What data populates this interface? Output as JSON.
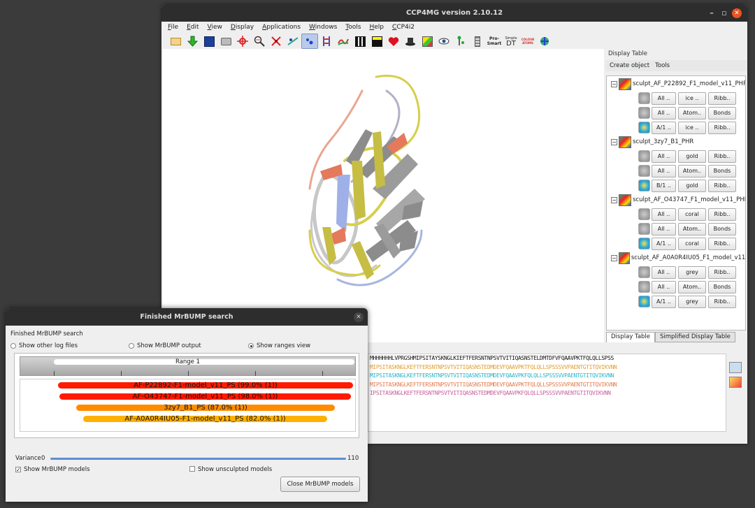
{
  "main_window": {
    "title": "CCP4MG version 2.10.12",
    "menus": [
      "File",
      "Edit",
      "View",
      "Display",
      "Applications",
      "Windows",
      "Tools",
      "Help",
      "CCP4i2"
    ],
    "toolbar_icons": [
      "open-folder-icon",
      "download-arrow-icon",
      "save-disk-icon",
      "camera-icon",
      "center-crosshair-icon",
      "zoom-icon",
      "clash-icon",
      "tracking-icon",
      "ribbon-icon",
      "color-icon",
      "movie-icon",
      "clapper-icon",
      "heart-icon",
      "hat-icon",
      "picture-icon",
      "eye-icon",
      "sequence-icon",
      "battery-icon",
      "pro-smart-icon",
      "dt-icon",
      "color-atoms-icon",
      "globe-icon"
    ],
    "toolbar_text": {
      "prosmart": "Pro-Smart",
      "simple": "Simple",
      "dt": "DT",
      "colour": "COLOUR ATOMS"
    }
  },
  "display_table": {
    "header": "Display Table",
    "menu_create": "Create object",
    "menu_tools": "Tools",
    "objects": [
      {
        "name": "sculpt_AF_P22892_F1_model_v11_PHR",
        "rows": [
          [
            "All ..",
            "ice ..",
            "Ribb.."
          ],
          [
            "All ..",
            "Atom..",
            "Bonds"
          ],
          [
            "A/1 ..",
            "ice ..",
            "Ribb.."
          ]
        ]
      },
      {
        "name": "sculpt_3zy7_B1_PHR",
        "rows": [
          [
            "All ..",
            "gold",
            "Ribb.."
          ],
          [
            "All ..",
            "Atom..",
            "Bonds"
          ],
          [
            "B/1 ..",
            "gold",
            "Ribb.."
          ]
        ]
      },
      {
        "name": "sculpt_AF_O43747_F1_model_v11_PHR",
        "rows": [
          [
            "All ..",
            "coral",
            "Ribb.."
          ],
          [
            "All ..",
            "Atom..",
            "Bonds"
          ],
          [
            "A/1 ..",
            "coral",
            "Ribb.."
          ]
        ]
      },
      {
        "name": "sculpt_AF_A0A0R4IU05_F1_model_v11_PHR",
        "rows": [
          [
            "All ..",
            "grey",
            "Ribb.."
          ],
          [
            "All ..",
            "Atom..",
            "Bonds"
          ],
          [
            "A/1 ..",
            "grey",
            "Ribb.."
          ]
        ]
      }
    ],
    "tabs": [
      "Display Table",
      "Simplified Display Table"
    ]
  },
  "sequence": {
    "lines": [
      "MHHHHHHLVPRGSHMIPSITAYSKNGLKIEFTFERSNTNPSVTVITIQASNSTELDMTDFVFQAAVPKTFQLQLLSPSS",
      "MIPSITASKNGLKEFTFERSNTNPSVTVITIQASNSTEDMDEVFQAAVPKTFQLQLLSPSSSVVPAENTGTITQVIKVNN",
      "MIPSITASKNGLKEFTFERSNTNPSVTVITIQASNSTEDMDEVFQAAVPKFQLQLLSPSSSVVPAENTGTITQVIKVNN",
      "MIPSITASKNGLKEFTFERSNTNPSVTVITIQASNSTEDMDEVFQAAVPKTFQLQLLSPSSSVVPAENTGTITQVIKVNN",
      "IPSITASKNGLKEFTFERSNTNPSVTVITIQASNSTEDMDEVFQAAVPKFQLQLLSPSSSVVPAENTGTITQVIKVNN"
    ]
  },
  "dialog": {
    "title": "Finished MrBUMP search",
    "heading": "Finished MrBUMP search",
    "radios": [
      "Show other log files",
      "Show MrBUMP output",
      "Show ranges view"
    ],
    "range_label": "Range 1",
    "models": [
      {
        "label": "AF-P22892-F1-model_v11_PS (99.0% (1))",
        "color": "#ff1a00",
        "fraction": 0.99
      },
      {
        "label": "AF-O43747-F1-model_v11_PS (98.0% (1))",
        "color": "#ff1a00",
        "fraction": 0.98
      },
      {
        "label": "3zy7_B1_PS (87.0% (1))",
        "color": "#ff8c00",
        "fraction": 0.87
      },
      {
        "label": "AF-A0A0R4IU05-F1-model_v11_PS (82.0% (1))",
        "color": "#ffb000",
        "fraction": 0.82
      }
    ],
    "variance_label": "Variance",
    "variance_min": "0",
    "variance_max": "110",
    "check_models": "Show MrBUMP models",
    "check_unsculpted": "Show unsculpted models",
    "close_button": "Close MrBUMP models"
  }
}
